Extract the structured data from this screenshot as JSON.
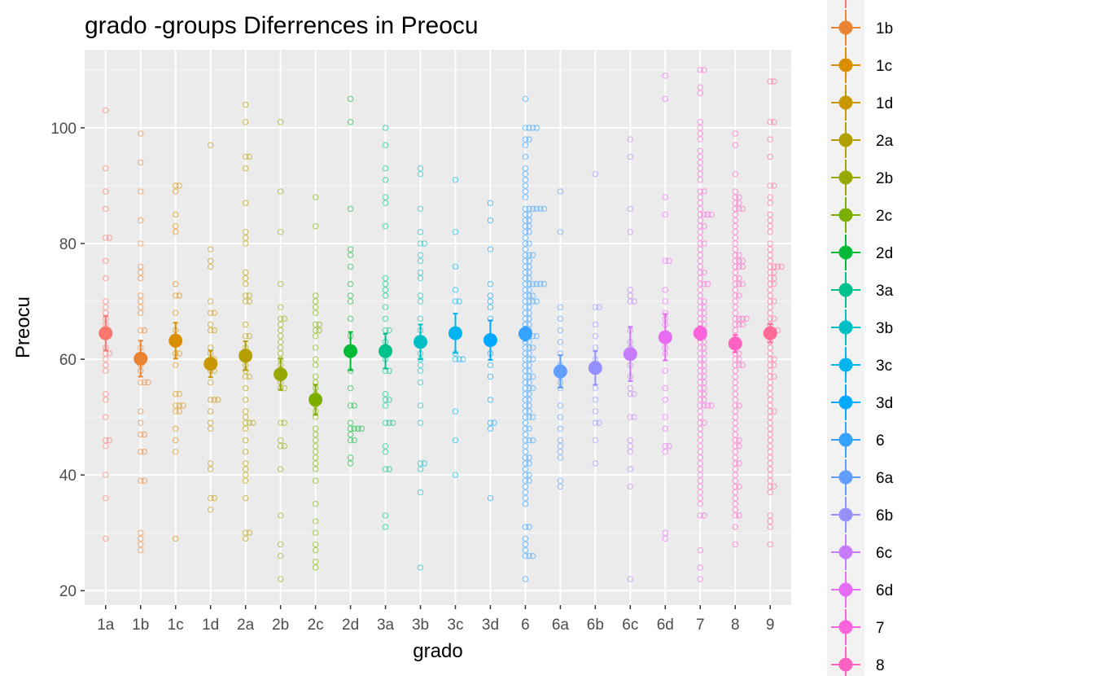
{
  "chart_data": {
    "type": "scatter",
    "title": "grado -groups Diferrences in  Preocu",
    "xlabel": "grado",
    "ylabel": "Preocu",
    "ylim": [
      17.5,
      113.5
    ],
    "yticks": [
      20,
      40,
      60,
      80,
      100
    ],
    "grid": true,
    "legend_position": "right",
    "categories": [
      "1a",
      "1b",
      "1c",
      "1d",
      "2a",
      "2b",
      "2c",
      "2d",
      "3a",
      "3b",
      "3c",
      "3d",
      "6",
      "6a",
      "6b",
      "6c",
      "6d",
      "7",
      "8",
      "9"
    ],
    "colors": [
      "#F8766D",
      "#EA8331",
      "#DB8E00",
      "#C99800",
      "#B3A000",
      "#97A900",
      "#7CAE00",
      "#00BA38",
      "#00C08B",
      "#00BFC4",
      "#00B4F0",
      "#00A9FF",
      "#35A2FF",
      "#619CFF",
      "#9590FF",
      "#C77CFF",
      "#E76BF3",
      "#FA62DB",
      "#FF61C3",
      "#FF6A98"
    ],
    "means": [
      64.5,
      60.1,
      63.2,
      59.2,
      60.6,
      57.4,
      53.0,
      61.4,
      61.4,
      63.0,
      64.5,
      63.3,
      64.4,
      57.9,
      58.5,
      60.9,
      63.8,
      64.5,
      62.7,
      64.5
    ],
    "ci_low": [
      61.5,
      57.0,
      60.1,
      56.9,
      58.1,
      54.7,
      50.4,
      58.1,
      58.4,
      60.0,
      61.1,
      59.9,
      63.2,
      55.1,
      55.6,
      56.2,
      59.8,
      63.3,
      61.2,
      62.9
    ],
    "ci_high": [
      67.5,
      63.2,
      66.3,
      61.5,
      63.1,
      60.1,
      55.6,
      64.7,
      64.4,
      66.0,
      67.9,
      66.7,
      65.6,
      60.7,
      61.4,
      65.6,
      67.8,
      65.7,
      64.2,
      66.1
    ],
    "raw_points": [
      [
        103,
        93,
        89,
        86,
        81,
        81,
        77,
        74,
        70,
        69,
        68,
        67,
        66,
        65,
        62,
        61,
        61,
        60,
        59,
        58,
        54,
        53,
        50,
        46,
        46,
        45,
        40,
        36,
        29
      ],
      [
        99,
        94,
        89,
        84,
        80,
        76,
        75,
        74,
        71,
        70,
        69,
        68,
        65,
        65,
        62,
        60,
        59,
        58,
        56,
        56,
        56,
        51,
        49,
        47,
        47,
        44,
        44,
        39,
        39,
        30,
        29,
        28,
        27
      ],
      [
        90,
        90,
        89,
        85,
        83,
        82,
        73,
        71,
        71,
        68,
        65,
        61,
        61,
        59,
        54,
        54,
        52,
        52,
        52,
        51,
        51,
        48,
        46,
        44,
        29
      ],
      [
        97,
        79,
        77,
        76,
        70,
        68,
        68,
        66,
        65,
        65,
        62,
        61,
        60,
        60,
        59,
        58,
        58,
        56,
        53,
        53,
        53,
        51,
        49,
        48,
        42,
        41,
        36,
        36,
        34
      ],
      [
        104,
        101,
        95,
        95,
        93,
        87,
        82,
        81,
        80,
        75,
        74,
        73,
        71,
        71,
        70,
        70,
        66,
        64,
        64,
        62,
        60,
        59,
        58,
        57,
        57,
        55,
        53,
        51,
        50,
        49,
        49,
        49,
        48,
        46,
        44,
        42,
        41,
        40,
        39,
        36,
        30,
        30,
        29
      ],
      [
        101,
        89,
        82,
        73,
        69,
        67,
        67,
        66,
        65,
        64,
        63,
        62,
        61,
        60,
        59,
        58,
        57,
        56,
        55,
        55,
        49,
        49,
        46,
        45,
        45,
        41,
        33,
        28,
        26,
        22
      ],
      [
        88,
        83,
        71,
        70,
        69,
        68,
        66,
        66,
        65,
        65,
        64,
        62,
        60,
        59,
        57,
        56,
        55,
        54,
        52,
        51,
        50,
        48,
        47,
        46,
        45,
        44,
        43,
        42,
        41,
        39,
        35,
        32,
        30,
        28,
        27,
        25,
        24
      ],
      [
        105,
        101,
        86,
        79,
        78,
        76,
        73,
        71,
        70,
        67,
        64,
        61,
        58,
        55,
        52,
        52,
        49,
        48,
        48,
        48,
        48,
        47,
        46,
        46,
        43,
        42
      ],
      [
        100,
        97,
        93,
        91,
        88,
        87,
        83,
        74,
        73,
        72,
        71,
        69,
        67,
        65,
        65,
        63,
        62,
        60,
        58,
        58,
        54,
        53,
        53,
        52,
        49,
        49,
        49,
        45,
        44,
        41,
        41,
        33,
        31
      ],
      [
        93,
        92,
        86,
        82,
        80,
        80,
        78,
        77,
        75,
        74,
        71,
        70,
        67,
        65,
        61,
        60,
        59,
        58,
        56,
        52,
        49,
        42,
        42,
        41,
        37,
        24
      ],
      [
        91,
        82,
        76,
        72,
        70,
        70,
        65,
        64,
        61,
        60,
        60,
        60,
        51,
        46,
        40
      ],
      [
        87,
        84,
        79,
        73,
        71,
        70,
        69,
        67,
        64,
        63,
        61,
        59,
        57,
        53,
        49,
        49,
        48,
        36
      ],
      [
        105,
        100,
        100,
        100,
        100,
        98,
        98,
        97,
        95,
        93,
        92,
        91,
        90,
        89,
        88,
        86,
        86,
        86,
        86,
        86,
        86,
        85,
        85,
        84,
        84,
        83,
        83,
        82,
        82,
        81,
        80,
        80,
        79,
        78,
        78,
        78,
        77,
        77,
        76,
        76,
        75,
        75,
        74,
        74,
        73,
        73,
        73,
        73,
        73,
        73,
        72,
        72,
        71,
        71,
        71,
        70,
        70,
        70,
        70,
        69,
        69,
        68,
        68,
        67,
        67,
        66,
        66,
        65,
        65,
        64,
        64,
        64,
        64,
        63,
        63,
        62,
        62,
        62,
        61,
        61,
        60,
        60,
        60,
        59,
        59,
        58,
        58,
        57,
        57,
        57,
        56,
        56,
        55,
        55,
        55,
        54,
        54,
        53,
        53,
        52,
        52,
        51,
        51,
        50,
        50,
        50,
        49,
        48,
        48,
        47,
        46,
        46,
        46,
        45,
        44,
        43,
        43,
        42,
        42,
        41,
        40,
        40,
        39,
        39,
        38,
        37,
        36,
        35,
        31,
        31,
        29,
        28,
        27,
        26,
        26,
        26,
        22
      ],
      [
        89,
        82,
        69,
        67,
        65,
        63,
        61,
        59,
        57,
        56,
        55,
        52,
        50,
        48,
        46,
        45,
        44,
        43,
        39,
        38
      ],
      [
        92,
        69,
        69,
        66,
        64,
        62,
        60,
        58,
        55,
        53,
        51,
        49,
        49,
        46,
        42
      ],
      [
        98,
        95,
        86,
        82,
        72,
        71,
        70,
        70,
        65,
        63,
        62,
        59,
        57,
        55,
        54,
        54,
        50,
        50,
        46,
        45,
        44,
        41,
        38,
        22
      ],
      [
        109,
        105,
        88,
        85,
        77,
        77,
        72,
        70,
        68,
        67,
        66,
        63,
        62,
        61,
        58,
        55,
        53,
        50,
        48,
        45,
        45,
        44,
        30,
        29
      ],
      [
        110,
        110,
        107,
        106,
        101,
        100,
        99,
        98,
        96,
        95,
        94,
        93,
        92,
        91,
        89,
        89,
        88,
        87,
        86,
        85,
        85,
        85,
        85,
        84,
        83,
        83,
        82,
        81,
        80,
        80,
        79,
        78,
        77,
        76,
        75,
        75,
        74,
        73,
        73,
        73,
        72,
        71,
        70,
        70,
        69,
        69,
        68,
        68,
        67,
        67,
        66,
        66,
        65,
        65,
        64,
        64,
        63,
        63,
        62,
        62,
        61,
        61,
        60,
        60,
        59,
        59,
        58,
        58,
        57,
        57,
        56,
        56,
        55,
        55,
        54,
        54,
        53,
        53,
        52,
        52,
        52,
        52,
        51,
        50,
        49,
        49,
        48,
        47,
        46,
        45,
        44,
        43,
        42,
        41,
        40,
        39,
        38,
        37,
        36,
        35,
        33,
        33,
        27,
        24,
        22
      ],
      [
        99,
        97,
        92,
        89,
        88,
        88,
        87,
        87,
        86,
        86,
        86,
        85,
        84,
        83,
        82,
        81,
        80,
        79,
        78,
        78,
        77,
        77,
        77,
        76,
        76,
        76,
        75,
        74,
        74,
        73,
        73,
        73,
        72,
        71,
        71,
        70,
        69,
        68,
        67,
        67,
        67,
        67,
        66,
        66,
        66,
        65,
        64,
        63,
        62,
        61,
        61,
        60,
        60,
        59,
        59,
        59,
        58,
        57,
        56,
        55,
        54,
        53,
        52,
        52,
        51,
        50,
        49,
        48,
        47,
        46,
        46,
        45,
        45,
        44,
        43,
        42,
        42,
        41,
        40,
        39,
        38,
        38,
        37,
        36,
        35,
        34,
        33,
        33,
        31,
        28
      ],
      [
        108,
        108,
        101,
        101,
        98,
        95,
        90,
        90,
        88,
        87,
        85,
        84,
        83,
        82,
        80,
        79,
        78,
        77,
        76,
        76,
        76,
        76,
        75,
        75,
        74,
        74,
        73,
        73,
        72,
        71,
        70,
        70,
        69,
        68,
        67,
        67,
        66,
        65,
        65,
        65,
        64,
        63,
        62,
        61,
        60,
        60,
        59,
        59,
        58,
        57,
        57,
        56,
        55,
        54,
        53,
        52,
        51,
        51,
        50,
        49,
        48,
        47,
        46,
        45,
        44,
        43,
        42,
        41,
        40,
        39,
        38,
        38,
        37,
        33,
        32,
        31,
        28
      ]
    ]
  }
}
